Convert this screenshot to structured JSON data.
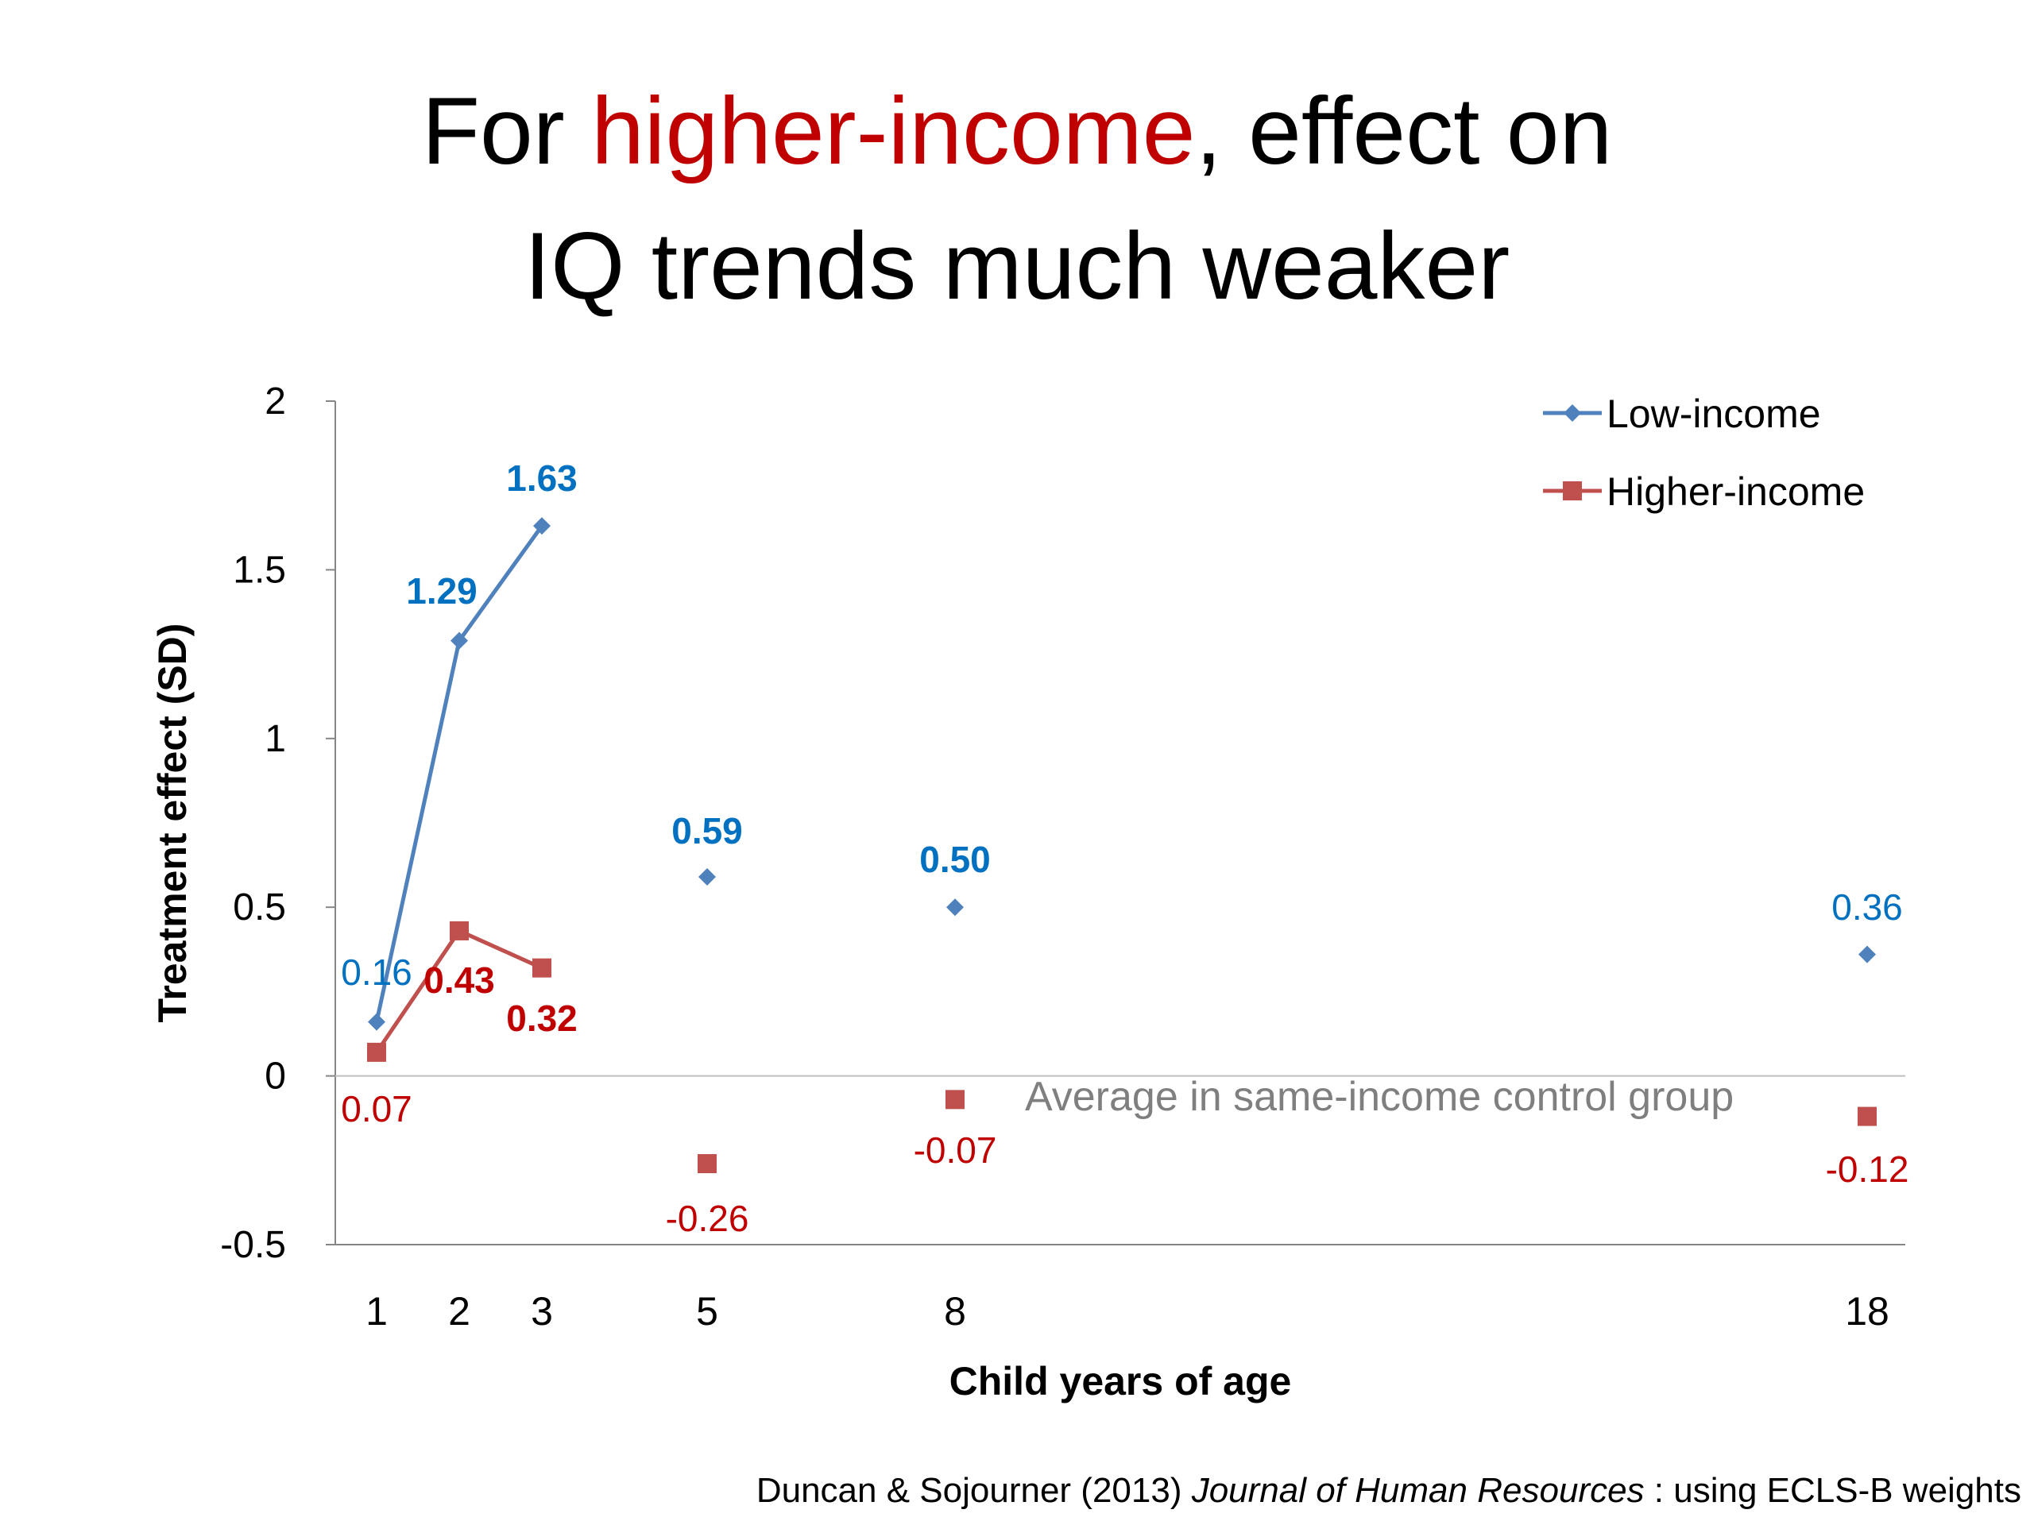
{
  "title": {
    "line1_pre": "For ",
    "line1_accent": "higher-income",
    "line1_post": ", effect on",
    "line2": "IQ trends much weaker"
  },
  "colors": {
    "accent_red": "#c00000",
    "low_series": "#4f81bd",
    "low_label": "#0070c0",
    "high_series": "#c0504d",
    "high_label": "#c00000",
    "annotation": "#7f7f7f",
    "axis": "#868686"
  },
  "chart_data": {
    "type": "line",
    "title": "",
    "xlabel": "Child years of age",
    "ylabel": "Treatment effect (SD)",
    "categories": [
      "1",
      "2",
      "3",
      "5",
      "8",
      "18"
    ],
    "ylim": [
      -0.5,
      2
    ],
    "yticks": [
      "2",
      "1.5",
      "1",
      "0.5",
      "0",
      "-0.5"
    ],
    "legend_position": "top-right",
    "series": [
      {
        "name": "Low-income",
        "marker": "diamond",
        "values": [
          0.16,
          1.29,
          1.63,
          0.59,
          0.5,
          0.36
        ],
        "labels": [
          "0.16",
          "1.29",
          "1.63",
          "0.59",
          "0.50",
          "0.36"
        ],
        "bold": [
          false,
          true,
          true,
          true,
          true,
          false
        ],
        "connected_through": 3
      },
      {
        "name": "Higher-income",
        "marker": "square",
        "values": [
          0.07,
          0.43,
          0.32,
          -0.26,
          -0.07,
          -0.12
        ],
        "labels": [
          "0.07",
          "0.43",
          "0.32",
          "-0.26",
          "-0.07",
          "-0.12"
        ],
        "bold": [
          false,
          true,
          true,
          false,
          false,
          false
        ],
        "connected_through": 3
      }
    ],
    "annotation": "Average in same-income control group"
  },
  "citation": {
    "authors": "Duncan & Sojourner (2013) ",
    "journal": "Journal of Human Resources",
    "rest": " : using ECLS-B weights"
  }
}
